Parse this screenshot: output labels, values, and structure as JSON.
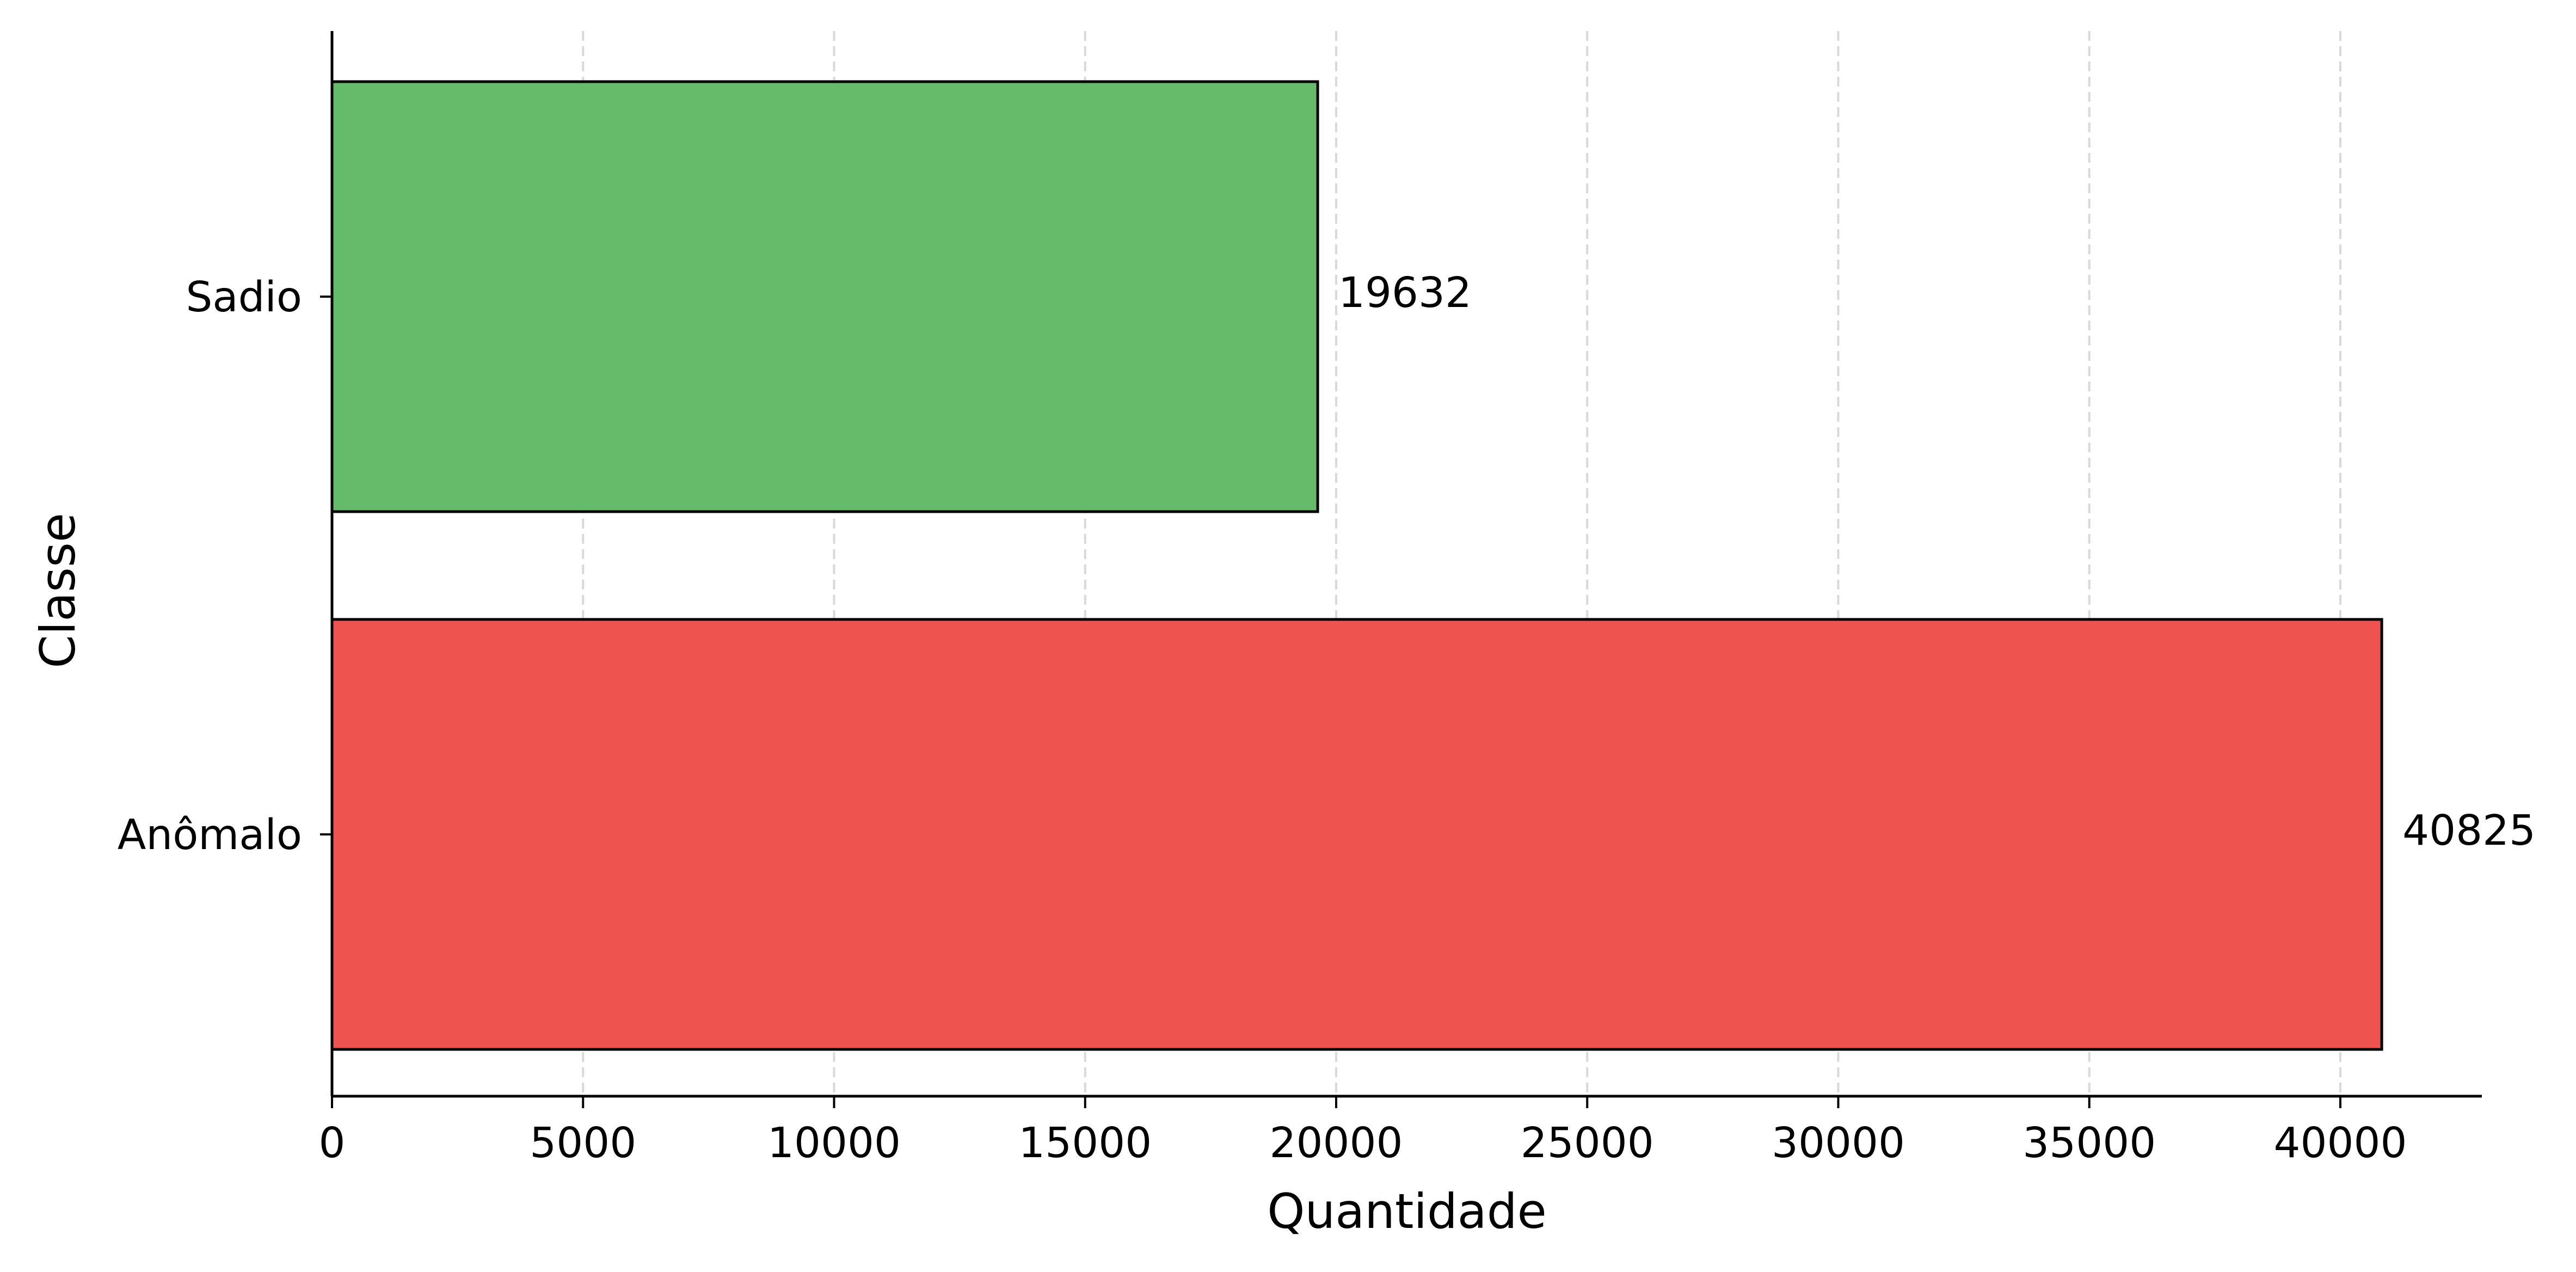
{
  "chart_data": {
    "type": "bar",
    "orientation": "horizontal",
    "title": "",
    "xlabel": "Quantidade",
    "ylabel": "Classe",
    "categories": [
      "Sadio",
      "Anômalo"
    ],
    "values": [
      19632,
      40825
    ],
    "value_labels": [
      "19632",
      "40825"
    ],
    "bar_colors": [
      "#66bb6a",
      "#ef5350"
    ],
    "edge_color": "#000000",
    "xlim": [
      0,
      42900
    ],
    "xticks": [
      0,
      5000,
      10000,
      15000,
      20000,
      25000,
      30000,
      35000,
      40000
    ],
    "xtick_labels": [
      "0",
      "5000",
      "10000",
      "15000",
      "20000",
      "25000",
      "30000",
      "35000",
      "40000"
    ],
    "grid": "x, dashed, light gray",
    "legend": "none"
  }
}
